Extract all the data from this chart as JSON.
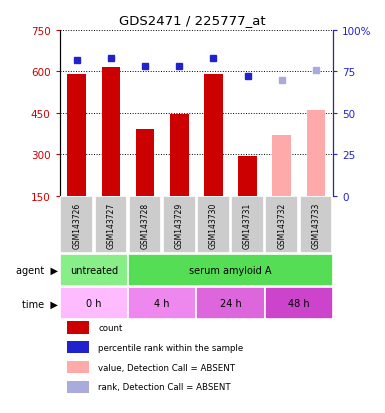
{
  "title": "GDS2471 / 225777_at",
  "samples": [
    "GSM143726",
    "GSM143727",
    "GSM143728",
    "GSM143729",
    "GSM143730",
    "GSM143731",
    "GSM143732",
    "GSM143733"
  ],
  "bar_heights": [
    590,
    615,
    390,
    445,
    590,
    295,
    370,
    460
  ],
  "bar_colors": [
    "#cc0000",
    "#cc0000",
    "#cc0000",
    "#cc0000",
    "#cc0000",
    "#cc0000",
    "#ffaaaa",
    "#ffaaaa"
  ],
  "percentile_values": [
    82,
    83,
    78,
    78,
    83,
    72,
    70,
    76
  ],
  "percentile_colors": [
    "#2222cc",
    "#2222cc",
    "#2222cc",
    "#2222cc",
    "#2222cc",
    "#2222cc",
    "#aaaadd",
    "#aaaadd"
  ],
  "ylim_left": [
    150,
    750
  ],
  "ylim_right": [
    0,
    100
  ],
  "yticks_left": [
    150,
    300,
    450,
    600,
    750
  ],
  "yticks_right": [
    0,
    25,
    50,
    75,
    100
  ],
  "ytick_labels_left": [
    "150",
    "300",
    "450",
    "600",
    "750"
  ],
  "ytick_labels_right": [
    "0",
    "25",
    "50",
    "75",
    "100%"
  ],
  "agent_labels": [
    {
      "text": "untreated",
      "start": 0,
      "end": 2,
      "color": "#88ee88"
    },
    {
      "text": "serum amyloid A",
      "start": 2,
      "end": 8,
      "color": "#55dd55"
    }
  ],
  "time_labels": [
    {
      "text": "0 h",
      "start": 0,
      "end": 2,
      "color": "#ffbbff"
    },
    {
      "text": "4 h",
      "start": 2,
      "end": 4,
      "color": "#ee88ee"
    },
    {
      "text": "24 h",
      "start": 4,
      "end": 6,
      "color": "#dd66dd"
    },
    {
      "text": "48 h",
      "start": 6,
      "end": 8,
      "color": "#cc44cc"
    }
  ],
  "legend_items": [
    {
      "label": "count",
      "color": "#cc0000"
    },
    {
      "label": "percentile rank within the sample",
      "color": "#2222cc"
    },
    {
      "label": "value, Detection Call = ABSENT",
      "color": "#ffaaaa"
    },
    {
      "label": "rank, Detection Call = ABSENT",
      "color": "#aaaadd"
    }
  ],
  "left_axis_color": "#cc0000",
  "right_axis_color": "#2222cc",
  "bar_width": 0.55,
  "sample_box_color": "#cccccc"
}
